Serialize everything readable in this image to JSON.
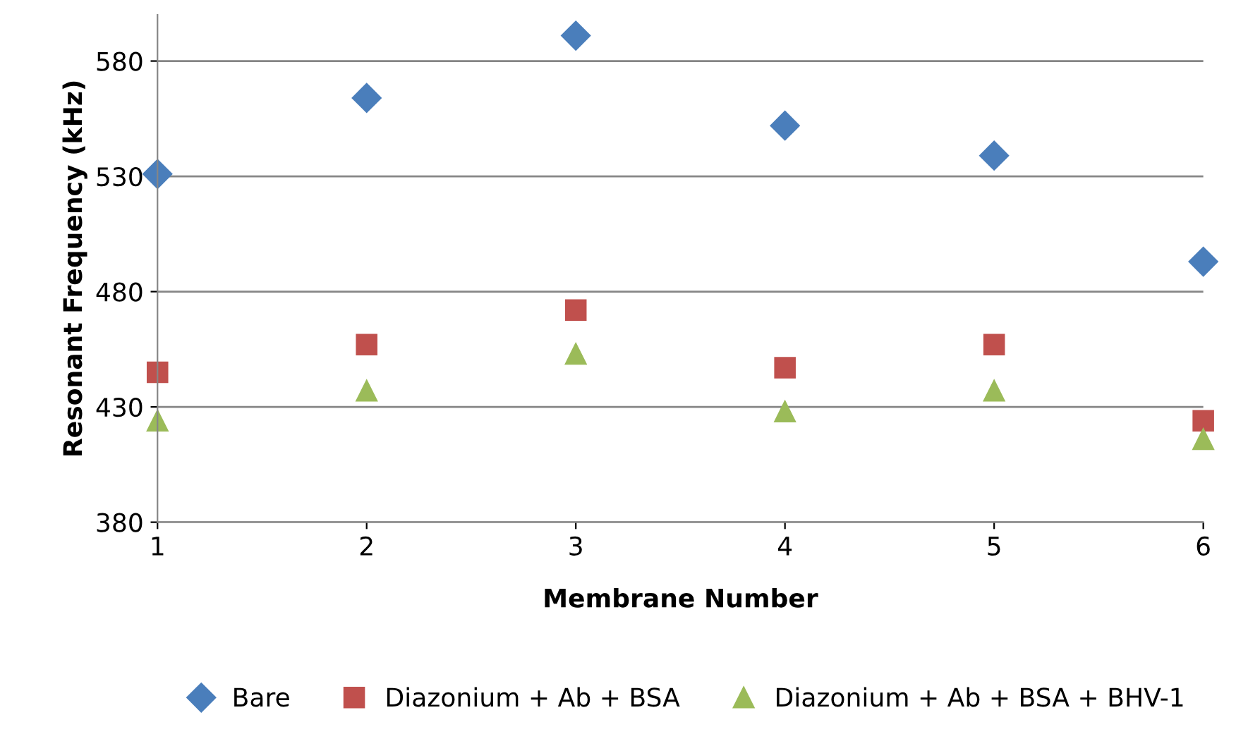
{
  "chart_data": {
    "type": "scatter",
    "xlabel": "Membrane Number",
    "ylabel": "Resonant Frequency (kHz)",
    "x": [
      1,
      2,
      3,
      4,
      5,
      6
    ],
    "series": [
      {
        "name": "Bare",
        "color": "#4a7ebb",
        "marker": "diamond",
        "values": [
          531,
          564,
          591,
          552,
          539,
          493
        ]
      },
      {
        "name": "Diazonium + Ab + BSA",
        "color": "#c0504d",
        "marker": "square",
        "values": [
          445,
          457,
          472,
          447,
          457,
          424
        ]
      },
      {
        "name": "Diazonium + Ab + BSA + BHV-1",
        "color": "#9bbb59",
        "marker": "triangle",
        "values": [
          424,
          437,
          453,
          428,
          437,
          416
        ]
      }
    ],
    "xlim": [
      1,
      6
    ],
    "ylim": [
      380,
      600
    ],
    "xticks": [
      1,
      2,
      3,
      4,
      5,
      6
    ],
    "yticks": [
      380,
      430,
      480,
      530,
      580
    ],
    "grid": "y",
    "legend": "bottom"
  }
}
